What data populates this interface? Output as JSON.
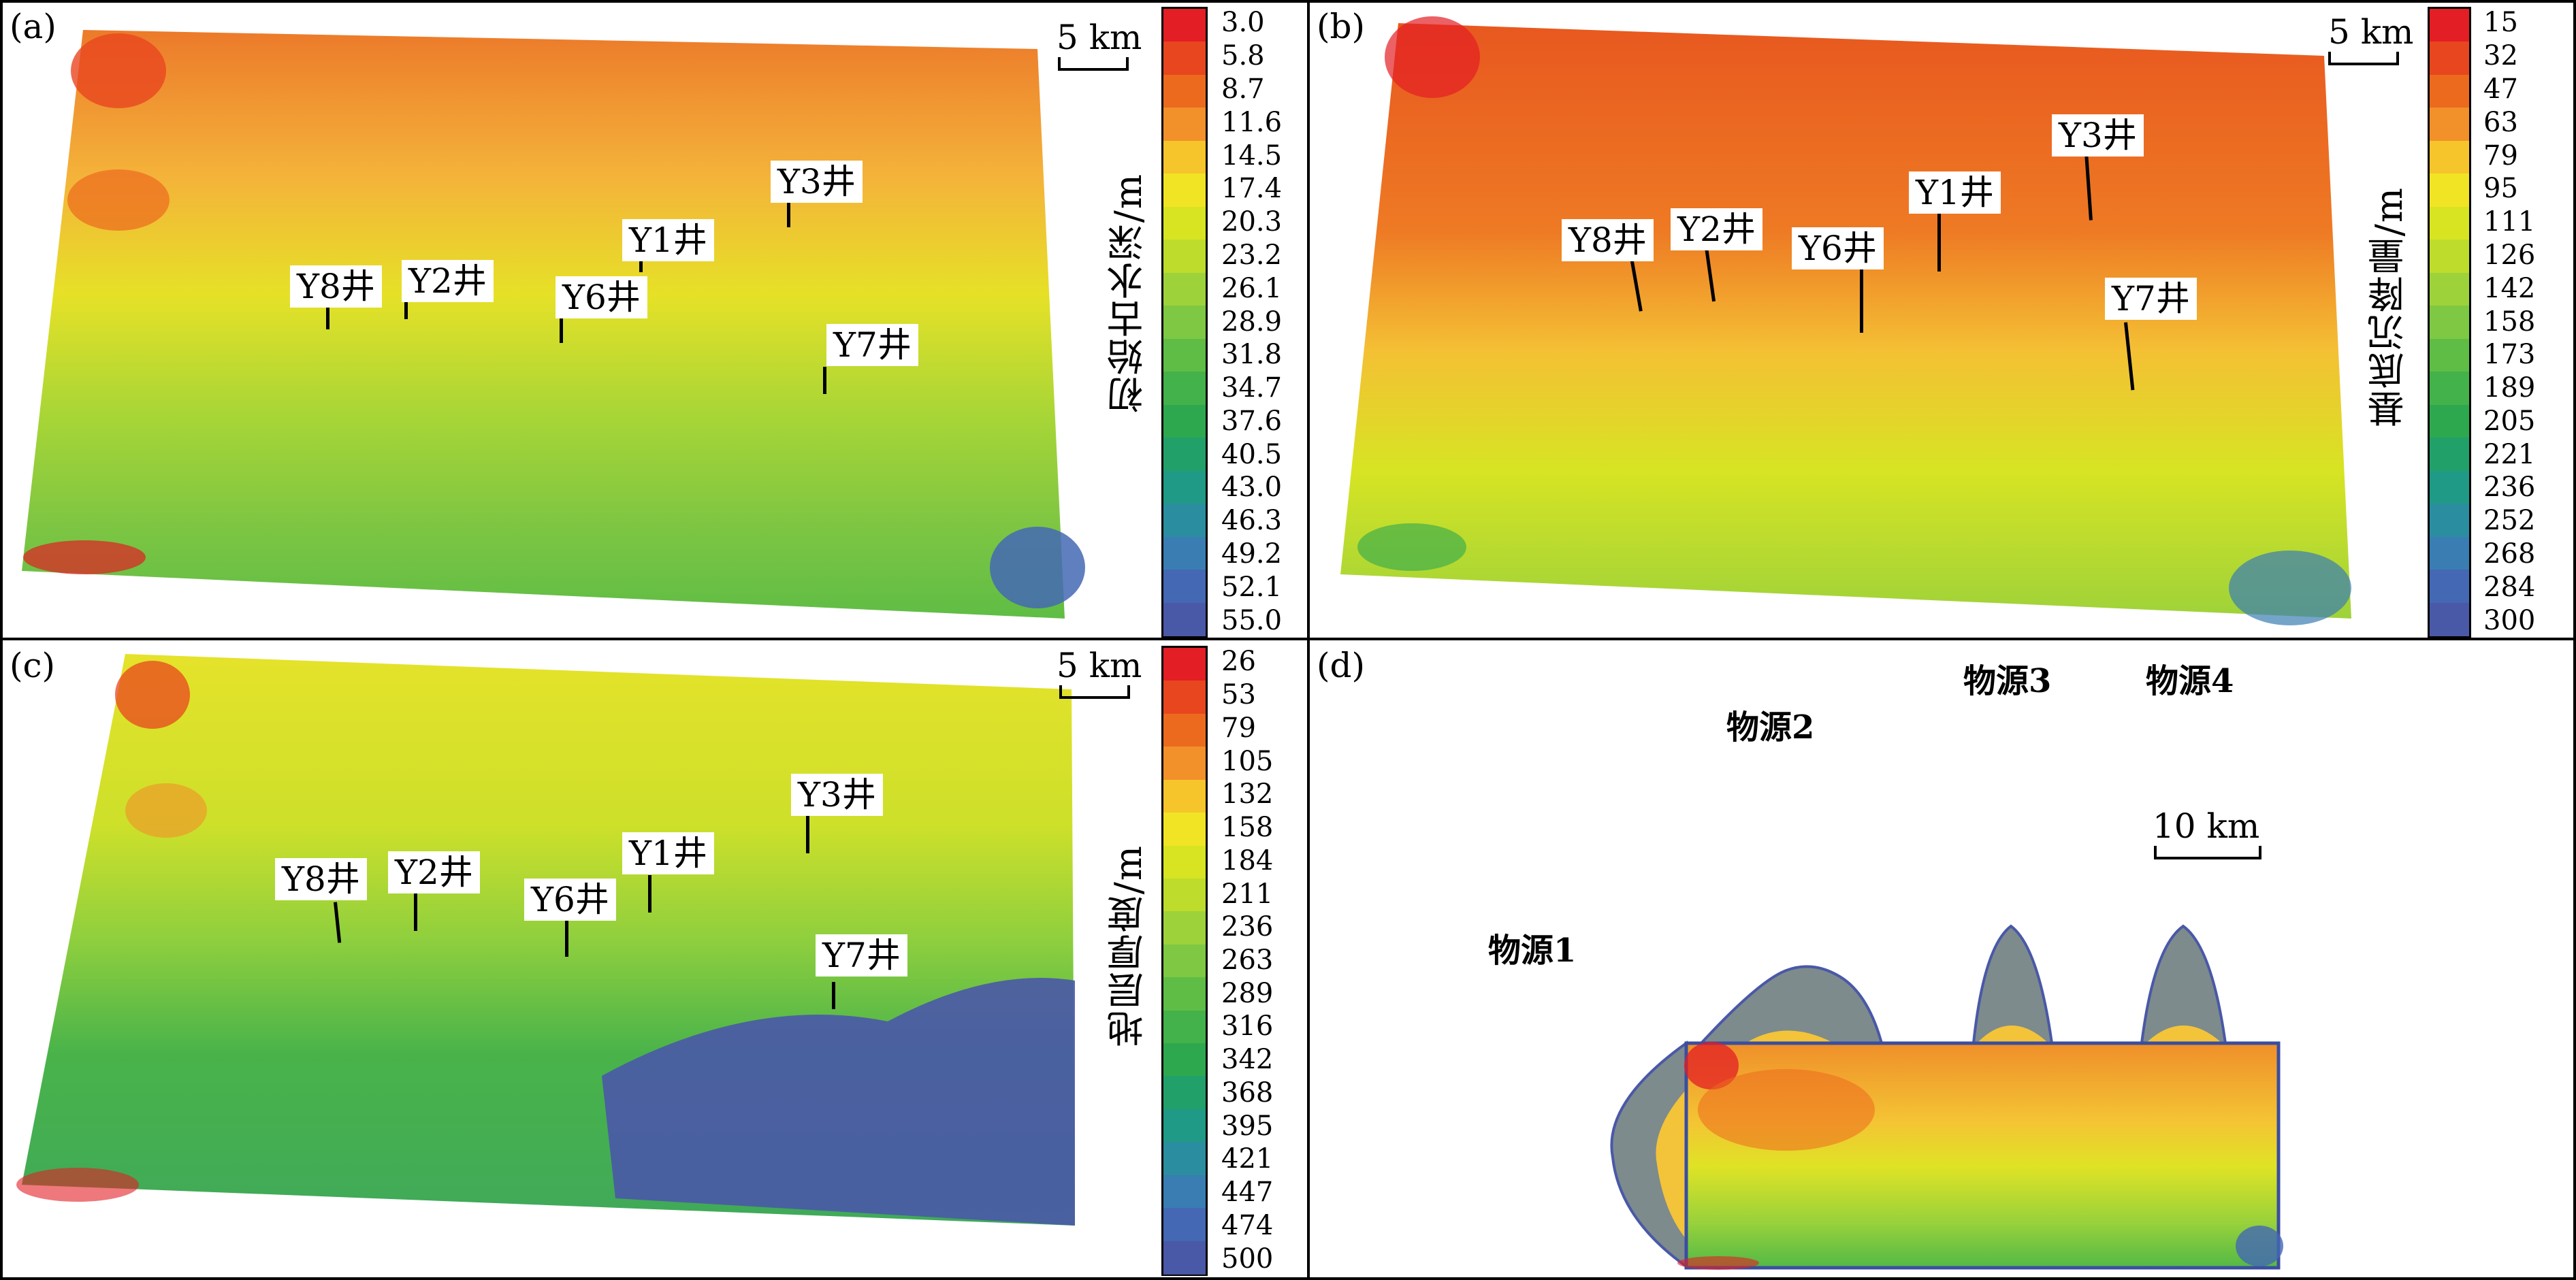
{
  "panels": {
    "a": {
      "label": "(a)",
      "scale": "5 km",
      "axis_label": "初始古水深/m",
      "ticks": [
        "3.0",
        "5.8",
        "8.7",
        "11.6",
        "14.5",
        "17.4",
        "20.3",
        "23.2",
        "26.1",
        "28.9",
        "31.8",
        "34.7",
        "37.6",
        "40.5",
        "43.0",
        "46.3",
        "49.2",
        "52.1",
        "55.0"
      ],
      "wells": [
        {
          "label": "Y3井"
        },
        {
          "label": "Y1井"
        },
        {
          "label": "Y8井"
        },
        {
          "label": "Y2井"
        },
        {
          "label": "Y6井"
        },
        {
          "label": "Y7井"
        }
      ]
    },
    "b": {
      "label": "(b)",
      "scale": "5 km",
      "axis_label": "基底沉降量/m",
      "ticks": [
        "15",
        "32",
        "47",
        "63",
        "79",
        "95",
        "111",
        "126",
        "142",
        "158",
        "173",
        "189",
        "205",
        "221",
        "236",
        "252",
        "268",
        "284",
        "300"
      ],
      "wells": [
        {
          "label": "Y3井"
        },
        {
          "label": "Y1井"
        },
        {
          "label": "Y8井"
        },
        {
          "label": "Y2井"
        },
        {
          "label": "Y6井"
        },
        {
          "label": "Y7井"
        }
      ]
    },
    "c": {
      "label": "(c)",
      "scale": "5 km",
      "axis_label": "地层厚度/m",
      "ticks": [
        "26",
        "53",
        "79",
        "105",
        "132",
        "158",
        "184",
        "211",
        "236",
        "263",
        "289",
        "316",
        "342",
        "368",
        "395",
        "421",
        "447",
        "474",
        "500"
      ],
      "wells": [
        {
          "label": "Y3井"
        },
        {
          "label": "Y1井"
        },
        {
          "label": "Y8井"
        },
        {
          "label": "Y2井"
        },
        {
          "label": "Y6井"
        },
        {
          "label": "Y7井"
        }
      ]
    },
    "d": {
      "label": "(d)",
      "scale": "10 km",
      "sources": [
        "物源1",
        "物源2",
        "物源3",
        "物源4"
      ]
    }
  },
  "colors": {
    "ramp": [
      "#e31e24",
      "#e8461f",
      "#ec6a1e",
      "#f2902a",
      "#f6c52b",
      "#f0e424",
      "#d8e421",
      "#bedc2b",
      "#9ed23a",
      "#7ec843",
      "#5fbd45",
      "#43b24a",
      "#2ea84f",
      "#22a06a",
      "#1f9a86",
      "#2b8ea0",
      "#3a7db2",
      "#4468b4",
      "#4a58a8"
    ]
  }
}
